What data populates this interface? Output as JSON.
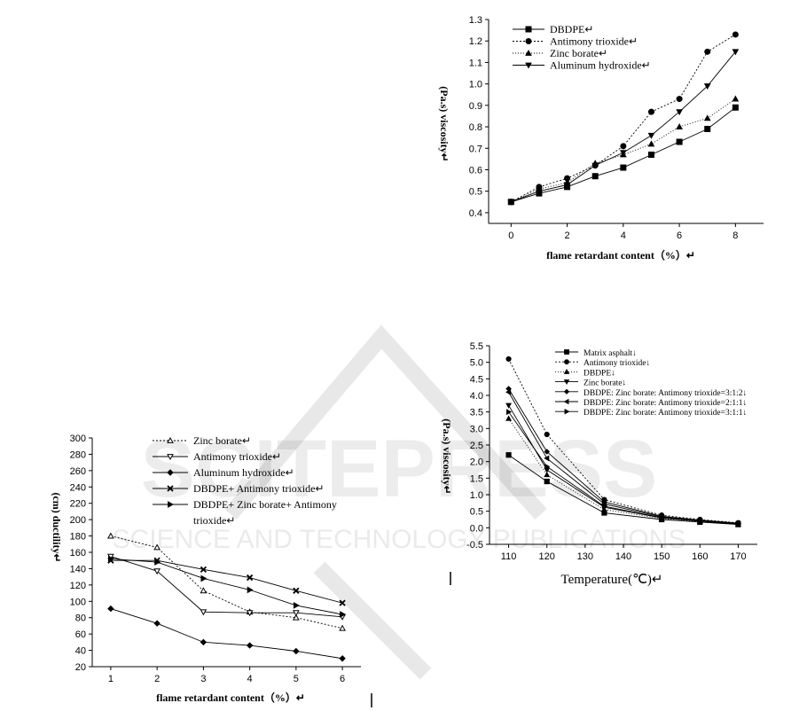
{
  "charts": [
    {
      "type": "line",
      "xlabel": "flame retardant content（%）↵",
      "ylabel": "(Pa.s) viscosity↵",
      "xlim": [
        -0.8,
        9
      ],
      "ylim": [
        0.35,
        1.3
      ],
      "xticks": [
        0,
        2,
        4,
        6,
        8
      ],
      "yticks": [
        0.4,
        0.5,
        0.6,
        0.7,
        0.8,
        0.9,
        1.0,
        1.1,
        1.2,
        1.3
      ],
      "ytick_labels": [
        "0.4",
        "0.5",
        "0.6",
        "0.7",
        "0.8",
        "0.9",
        "1.0",
        "1.1",
        "1.2",
        "1.3"
      ],
      "x": [
        0,
        1,
        2,
        3,
        4,
        5,
        6,
        7,
        8
      ],
      "series": [
        {
          "name": "DBDPE↵",
          "marker": "square",
          "dash": "",
          "values": [
            0.45,
            0.49,
            0.52,
            0.57,
            0.61,
            0.67,
            0.73,
            0.79,
            0.89
          ]
        },
        {
          "name": "Antimony trioxide↵",
          "marker": "circle",
          "dash": "2,2",
          "values": [
            0.45,
            0.52,
            0.56,
            0.62,
            0.71,
            0.87,
            0.93,
            1.15,
            1.23
          ]
        },
        {
          "name": "Zinc borate↵",
          "marker": "triangle-up",
          "dash": "1,2",
          "values": [
            0.45,
            0.51,
            0.54,
            0.63,
            0.67,
            0.72,
            0.8,
            0.84,
            0.93
          ]
        },
        {
          "name": "Aluminum hydroxide↵",
          "marker": "triangle-down",
          "dash": "",
          "values": [
            0.45,
            0.5,
            0.53,
            0.62,
            0.68,
            0.76,
            0.87,
            0.99,
            1.15
          ]
        }
      ]
    },
    {
      "type": "line",
      "xlabel": "flame retardant content（%）↵",
      "ylabel": "(cm) ductility↵",
      "xlim": [
        0.6,
        6.4
      ],
      "ylim": [
        20,
        300
      ],
      "xticks": [
        1,
        2,
        3,
        4,
        5,
        6
      ],
      "yticks": [
        20,
        40,
        60,
        80,
        100,
        120,
        140,
        160,
        180,
        200,
        220,
        240,
        260,
        280,
        300
      ],
      "ytick_labels": [
        "20",
        "40",
        "60",
        "80",
        "100",
        "120",
        "140",
        "160",
        "180",
        "200",
        "220",
        "240",
        "260",
        "280",
        "300"
      ],
      "x": [
        1,
        2,
        3,
        4,
        5,
        6
      ],
      "series": [
        {
          "name": "Zinc borate↵",
          "marker": "triangle-up-open",
          "dash": "2,2",
          "values": [
            180,
            166,
            113,
            87,
            80,
            67
          ]
        },
        {
          "name": "Antimony trioxide↵",
          "marker": "triangle-down-open",
          "dash": "",
          "values": [
            155,
            137,
            87,
            86,
            86,
            81
          ]
        },
        {
          "name": "Aluminum hydroxide↵",
          "marker": "diamond",
          "dash": "",
          "values": [
            91,
            73,
            50,
            46,
            39,
            30
          ]
        },
        {
          "name": "DBDPE+ Antimony trioxide↵",
          "marker": "x",
          "dash": "",
          "values": [
            150,
            150,
            139,
            129,
            113,
            98
          ]
        },
        {
          "name": "DBDPE+ Zinc borate+ Antimony trioxide↵",
          "marker": "triangle-right",
          "dash": "",
          "values": [
            152,
            148,
            128,
            114,
            95,
            84
          ]
        }
      ]
    },
    {
      "type": "line",
      "xlabel": "Temperature(℃)↵",
      "ylabel": "(Pa.s) viscosity↵",
      "xlim": [
        105,
        175
      ],
      "ylim": [
        -0.5,
        5.5
      ],
      "xticks": [
        110,
        120,
        130,
        140,
        150,
        160,
        170
      ],
      "yticks": [
        -0.5,
        0,
        0.5,
        1,
        1.5,
        2,
        2.5,
        3,
        3.5,
        4,
        4.5,
        5,
        5.5
      ],
      "ytick_labels": [
        "-0.5",
        "0.0",
        "0.5",
        "1.0",
        "1.5",
        "2.0",
        "2.5",
        "3.0",
        "3.5",
        "4.0",
        "4.5",
        "5.0",
        "5.5"
      ],
      "x": [
        110,
        120,
        135,
        150,
        160,
        170
      ],
      "series": [
        {
          "name": "Matrix asphalt↓",
          "marker": "square",
          "dash": "",
          "values": [
            2.2,
            1.4,
            0.45,
            0.25,
            0.17,
            0.1
          ]
        },
        {
          "name": "Antimony trioxide↓",
          "marker": "circle",
          "dash": "2,2",
          "values": [
            5.1,
            2.82,
            0.85,
            0.38,
            0.25,
            0.15
          ]
        },
        {
          "name": "DBDPE↓",
          "marker": "triangle-up",
          "dash": "1,2",
          "values": [
            3.3,
            1.6,
            0.55,
            0.28,
            0.19,
            0.1
          ]
        },
        {
          "name": "Zinc borate↓",
          "marker": "triangle-down",
          "dash": "",
          "values": [
            3.7,
            1.75,
            0.62,
            0.3,
            0.2,
            0.11
          ]
        },
        {
          "name": "DBDPE: Zinc borate: Antimony trioxide=3:1:2↓",
          "marker": "diamond",
          "dash": "",
          "values": [
            4.2,
            2.3,
            0.78,
            0.35,
            0.23,
            0.14
          ]
        },
        {
          "name": "DBDPE: Zinc borate: Antimony trioxide=2:1:1↓",
          "marker": "triangle-left",
          "dash": "",
          "values": [
            4.1,
            2.1,
            0.72,
            0.33,
            0.22,
            0.13
          ]
        },
        {
          "name": "DBDPE: Zinc borate: Antimony trioxide=3:1:1↓",
          "marker": "triangle-right",
          "dash": "",
          "values": [
            3.5,
            1.85,
            0.65,
            0.31,
            0.21,
            0.12
          ]
        }
      ]
    }
  ],
  "watermark": {
    "line1": "SCITEPRESS",
    "line2": "SCIENCE AND TECHNOLOGY PUBLICATIONS"
  }
}
